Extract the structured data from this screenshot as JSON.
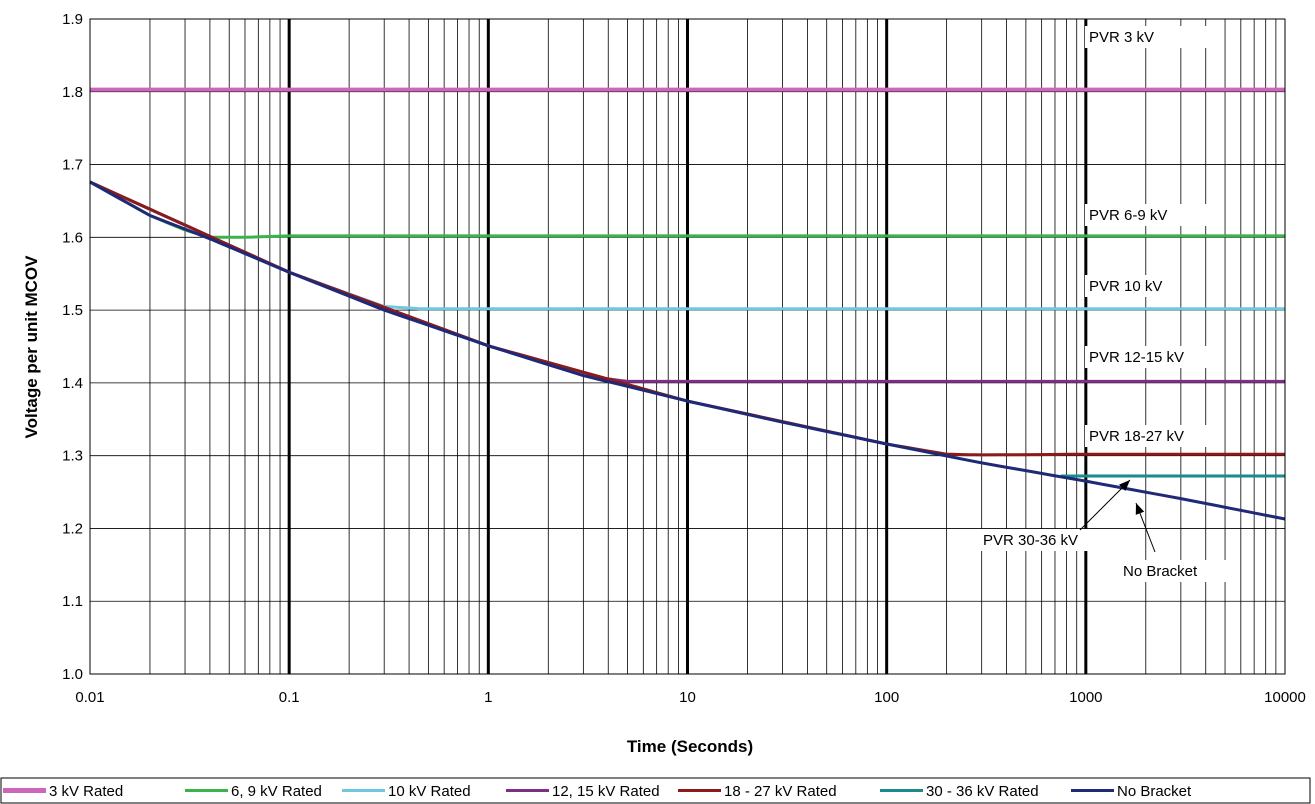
{
  "chart_data": {
    "type": "line",
    "title": "",
    "xlabel": "Time (Seconds)",
    "ylabel": "Voltage per unit MCOV",
    "x_scale": "log",
    "xlim": [
      0.01,
      10000
    ],
    "ylim": [
      1.0,
      1.9
    ],
    "x_ticks": [
      "0.01",
      "0.1",
      "1",
      "10",
      "100",
      "1000",
      "10000"
    ],
    "y_ticks": [
      "1.0",
      "1.1",
      "1.2",
      "1.3",
      "1.4",
      "1.5",
      "1.6",
      "1.7",
      "1.8",
      "1.9"
    ],
    "grid": true,
    "legend_position": "bottom",
    "series": [
      {
        "name": "3 kV Rated",
        "color": "#cc66bb",
        "x": [
          0.01,
          10000
        ],
        "y": [
          1.803,
          1.803
        ]
      },
      {
        "name": "6, 9 kV Rated",
        "color": "#3cb34a",
        "x": [
          0.01,
          0.02,
          0.03,
          0.04,
          0.06,
          0.1,
          1,
          10,
          100,
          1000,
          10000
        ],
        "y": [
          1.676,
          1.63,
          1.61,
          1.6,
          1.6,
          1.602,
          1.602,
          1.602,
          1.602,
          1.602,
          1.602
        ]
      },
      {
        "name": "10 kV Rated",
        "color": "#6fc8e0",
        "x": [
          0.01,
          0.1,
          0.3,
          0.45,
          1,
          10,
          100,
          1000,
          10000
        ],
        "y": [
          1.676,
          1.552,
          1.505,
          1.502,
          1.502,
          1.502,
          1.502,
          1.502,
          1.502
        ]
      },
      {
        "name": "12, 15 kV Rated",
        "color": "#7d2f86",
        "x": [
          0.01,
          0.1,
          1,
          3,
          5,
          10,
          100,
          1000,
          10000
        ],
        "y": [
          1.676,
          1.552,
          1.451,
          1.41,
          1.402,
          1.402,
          1.402,
          1.402,
          1.402
        ]
      },
      {
        "name": "18 - 27 kV Rated",
        "color": "#8b1a1a",
        "x": [
          0.01,
          0.1,
          1,
          10,
          100,
          200,
          300,
          1000,
          10000
        ],
        "y": [
          1.676,
          1.552,
          1.451,
          1.375,
          1.316,
          1.302,
          1.301,
          1.302,
          1.302
        ]
      },
      {
        "name": "30 - 36 kV Rated",
        "color": "#1a8a8a",
        "x": [
          750,
          10000
        ],
        "y": [
          1.272,
          1.272
        ]
      },
      {
        "name": "No Bracket",
        "color": "#1e2a78",
        "x": [
          0.01,
          0.02,
          0.04,
          0.1,
          0.3,
          1,
          3,
          10,
          30,
          100,
          300,
          1000,
          3000,
          10000
        ],
        "y": [
          1.676,
          1.63,
          1.598,
          1.552,
          1.5,
          1.451,
          1.41,
          1.375,
          1.346,
          1.316,
          1.29,
          1.265,
          1.241,
          1.213
        ]
      }
    ],
    "annotations": [
      "PVR 3 kV",
      "PVR 6-9 kV",
      "PVR 10 kV",
      "PVR 12-15 kV",
      "PVR 18-27 kV",
      "PVR 30-36 kV",
      "No Bracket"
    ]
  }
}
